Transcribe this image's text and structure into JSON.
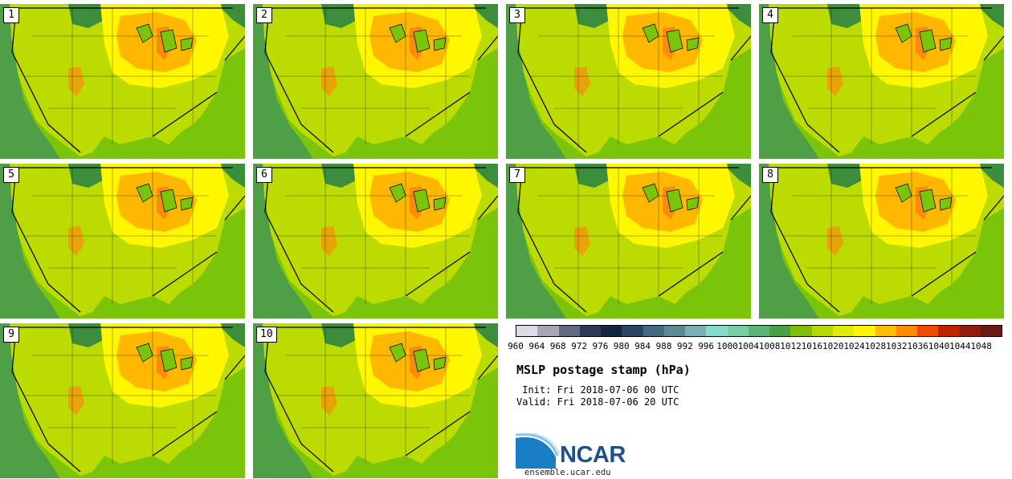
{
  "stamps": [
    "1",
    "2",
    "3",
    "4",
    "5",
    "6",
    "7",
    "8",
    "9",
    "10"
  ],
  "colorbar": {
    "tick_labels": [
      "960",
      "964",
      "968",
      "972",
      "976",
      "980",
      "984",
      "988",
      "992",
      "996",
      "1000",
      "1004",
      "1008",
      "1012",
      "1016",
      "1020",
      "1024",
      "1028",
      "1032",
      "1036",
      "1040",
      "1044",
      "1048"
    ],
    "colors": [
      "#dcdce4",
      "#a5a5b5",
      "#656a80",
      "#2c3a55",
      "#152440",
      "#2b4565",
      "#456a80",
      "#5e8a96",
      "#78b0b6",
      "#84dccc",
      "#78cca0",
      "#5cb474",
      "#4aa044",
      "#82bc0a",
      "#b4d800",
      "#e0ec08",
      "#fff600",
      "#ffbe00",
      "#fe8a00",
      "#f04a02",
      "#be2400",
      "#901c0c",
      "#6a1a14"
    ]
  },
  "title": "MSLP postage stamp (hPa)",
  "init_line": " Init: Fri 2018-07-06 00 UTC",
  "valid_line": "Valid: Fri 2018-07-06 20 UTC",
  "logo": {
    "text": "NCAR",
    "site": "ensemble.ucar.edu"
  },
  "colors": {
    "ocean": "#7ac40a",
    "land": "#bcdb00",
    "high": "#fff700",
    "peak": "#ffb700",
    "core": "#fb8b0c",
    "coast": "#3c8e3c",
    "border": "#000000"
  }
}
